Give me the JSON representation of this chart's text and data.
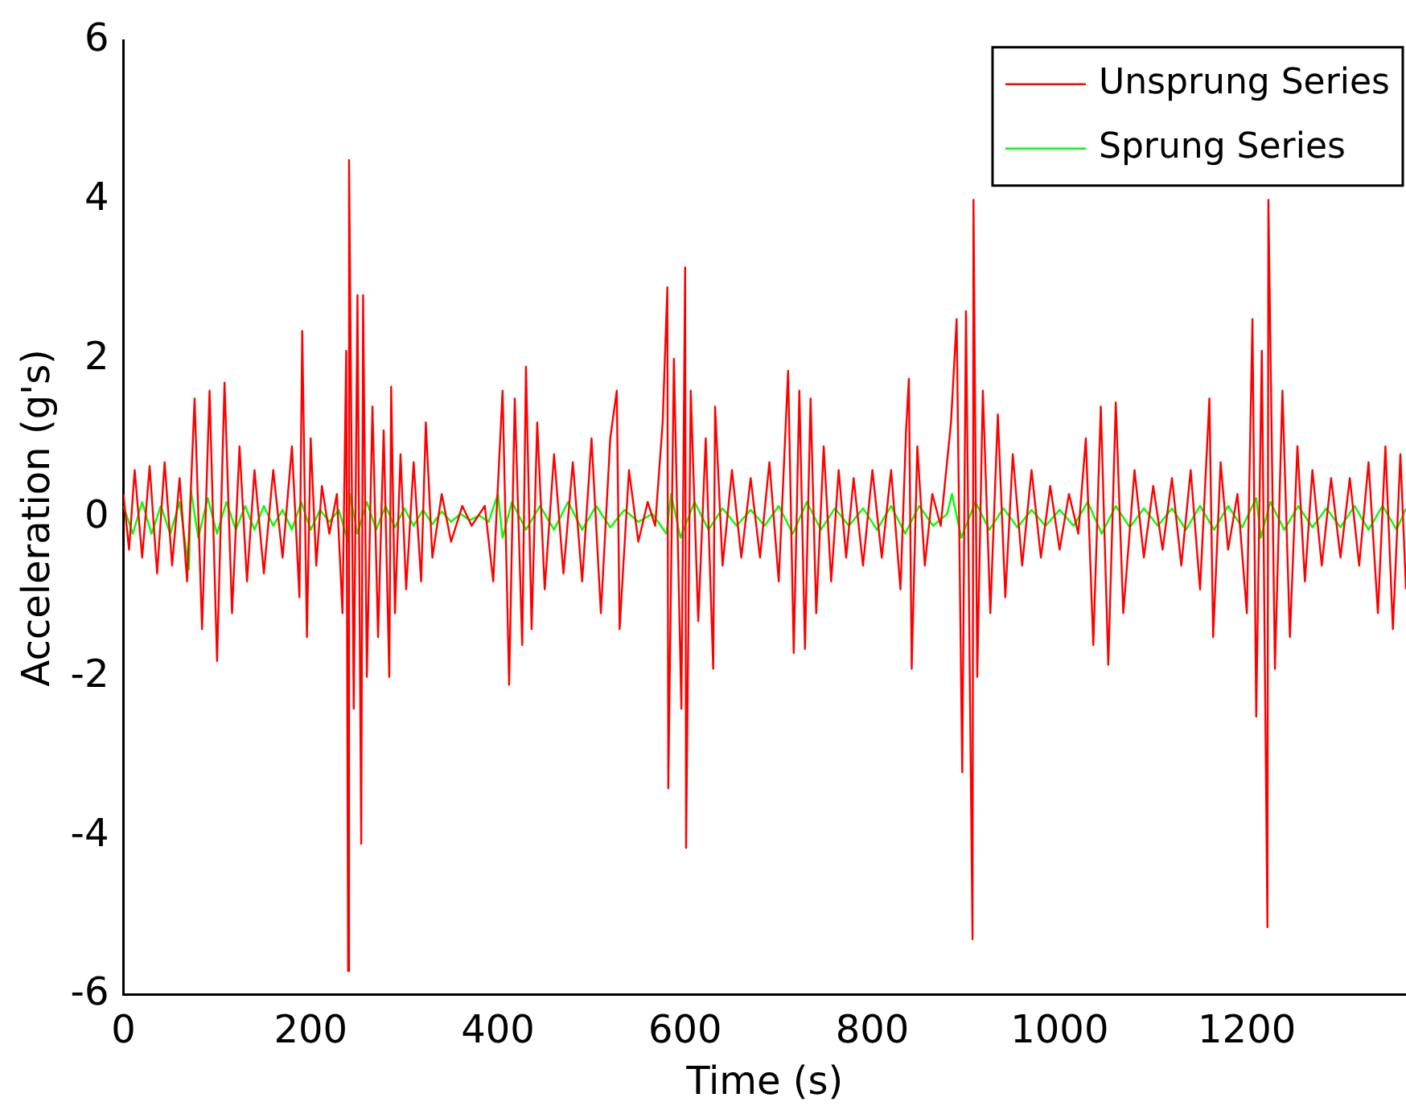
{
  "chart_data": {
    "type": "line",
    "xlabel": "Time (s)",
    "ylabel": "Acceleration (g's)",
    "xlim": [
      0,
      1370
    ],
    "xticks": [
      0,
      200,
      400,
      600,
      800,
      1000,
      1200
    ],
    "ylim": [
      -6,
      6
    ],
    "yticks": [
      -6,
      -4,
      -2,
      0,
      2,
      4,
      6
    ],
    "grid": false,
    "legend": "top right",
    "marker": "none",
    "line_style": "solid",
    "series": [
      {
        "name": "Unsprung Series",
        "color": "#ff0000",
        "x": [
          0,
          6,
          12,
          20,
          28,
          36,
          44,
          52,
          60,
          68,
          76,
          84,
          92,
          100,
          108,
          116,
          124,
          132,
          140,
          150,
          160,
          170,
          180,
          188,
          191,
          196,
          200,
          206,
          212,
          220,
          228,
          234,
          238,
          240,
          241,
          246,
          250,
          254,
          256,
          260,
          266,
          272,
          278,
          284,
          286,
          290,
          296,
          302,
          310,
          318,
          323,
          330,
          340,
          350,
          362,
          372,
          386,
          395,
          405,
          412,
          418,
          426,
          430,
          436,
          442,
          450,
          460,
          470,
          480,
          490,
          500,
          510,
          520,
          527,
          530,
          540,
          550,
          560,
          568,
          576,
          581,
          582,
          588,
          596,
          600,
          601,
          606,
          614,
          622,
          630,
          632,
          640,
          650,
          660,
          670,
          680,
          690,
          700,
          710,
          716,
          722,
          728,
          734,
          740,
          748,
          756,
          764,
          772,
          780,
          790,
          800,
          810,
          820,
          830,
          836,
          839,
          842,
          848,
          856,
          864,
          873,
          884,
          890,
          896,
          900,
          907,
          908,
          912,
          918,
          926,
          934,
          942,
          950,
          960,
          970,
          980,
          990,
          1000,
          1010,
          1020,
          1028,
          1036,
          1044,
          1052,
          1060,
          1068,
          1080,
          1090,
          1100,
          1110,
          1120,
          1130,
          1140,
          1150,
          1160,
          1164,
          1172,
          1180,
          1190,
          1200,
          1206,
          1210,
          1216,
          1222,
          1223,
          1230,
          1238,
          1246,
          1254,
          1262,
          1270,
          1280,
          1290,
          1300,
          1310,
          1320,
          1330,
          1340,
          1348,
          1356,
          1364,
          1370
        ],
        "values": [
          0.3,
          -0.4,
          0.6,
          -0.5,
          0.65,
          -0.7,
          0.7,
          -0.6,
          0.5,
          -0.8,
          1.5,
          -1.4,
          1.6,
          -1.8,
          1.7,
          -1.2,
          0.9,
          -0.8,
          0.6,
          -0.7,
          0.6,
          -0.5,
          0.9,
          -1.0,
          2.35,
          -1.5,
          1.0,
          -0.6,
          0.4,
          -0.2,
          0.3,
          -1.2,
          2.1,
          -5.7,
          4.5,
          -2.4,
          2.8,
          -4.1,
          2.8,
          -2.0,
          1.4,
          -1.5,
          1.1,
          -2.0,
          1.65,
          -1.2,
          0.8,
          -0.9,
          0.7,
          -0.8,
          1.2,
          -0.5,
          0.3,
          -0.3,
          0.15,
          -0.1,
          0.15,
          -0.8,
          1.6,
          -2.1,
          1.5,
          -1.6,
          1.9,
          -1.4,
          1.2,
          -0.9,
          0.8,
          -0.7,
          0.7,
          -0.8,
          1.0,
          -1.2,
          1.0,
          1.6,
          -1.4,
          0.6,
          -0.3,
          0.2,
          -0.1,
          1.2,
          2.9,
          -3.4,
          2.0,
          -2.4,
          3.15,
          -4.15,
          1.6,
          -1.3,
          1.0,
          -1.9,
          1.4,
          -0.6,
          0.6,
          -0.5,
          0.5,
          -0.5,
          0.7,
          -0.8,
          1.85,
          -1.7,
          1.6,
          -1.65,
          1.5,
          -1.2,
          0.9,
          -0.8,
          0.6,
          -0.5,
          0.5,
          -0.6,
          0.6,
          -0.5,
          0.6,
          -0.9,
          1.1,
          1.75,
          -1.9,
          0.9,
          -0.6,
          0.3,
          -0.1,
          1.2,
          2.5,
          -3.2,
          2.6,
          -5.3,
          4.0,
          -2.0,
          1.6,
          -1.2,
          1.3,
          -1.0,
          0.8,
          -0.6,
          0.6,
          -0.5,
          0.4,
          -0.4,
          0.3,
          -0.2,
          1.0,
          -1.6,
          1.4,
          -1.85,
          1.45,
          -1.2,
          0.6,
          -0.5,
          0.4,
          -0.4,
          0.5,
          -0.6,
          0.6,
          -0.9,
          1.5,
          -1.5,
          0.7,
          -0.4,
          0.3,
          -1.2,
          2.5,
          -2.5,
          2.1,
          -5.15,
          4.0,
          -1.9,
          1.6,
          -1.5,
          0.9,
          -0.8,
          0.6,
          -0.6,
          0.5,
          -0.5,
          0.5,
          -0.6,
          0.7,
          -1.2,
          0.9,
          -1.4,
          0.8,
          -0.9
        ]
      },
      {
        "name": "Sprung Series",
        "color": "#00ff00",
        "x": [
          0,
          10,
          20,
          30,
          40,
          50,
          60,
          70,
          72,
          80,
          90,
          100,
          110,
          120,
          130,
          140,
          150,
          160,
          170,
          180,
          190,
          200,
          210,
          220,
          230,
          240,
          242,
          250,
          260,
          270,
          280,
          290,
          300,
          310,
          320,
          330,
          340,
          350,
          360,
          370,
          380,
          390,
          400,
          405,
          415,
          430,
          445,
          460,
          475,
          490,
          505,
          520,
          535,
          550,
          565,
          580,
          585,
          595,
          610,
          625,
          640,
          655,
          670,
          685,
          700,
          715,
          730,
          745,
          760,
          775,
          790,
          805,
          820,
          835,
          850,
          865,
          880,
          885,
          895,
          910,
          925,
          940,
          955,
          970,
          985,
          1000,
          1015,
          1030,
          1045,
          1060,
          1075,
          1090,
          1105,
          1120,
          1135,
          1150,
          1165,
          1180,
          1195,
          1210,
          1215,
          1225,
          1240,
          1255,
          1270,
          1285,
          1300,
          1315,
          1330,
          1345,
          1360,
          1370
        ],
        "values": [
          0.15,
          -0.2,
          0.2,
          -0.2,
          0.15,
          -0.2,
          0.2,
          -0.65,
          0.35,
          -0.25,
          0.25,
          -0.2,
          0.2,
          -0.15,
          0.15,
          -0.15,
          0.15,
          -0.1,
          0.1,
          -0.15,
          0.2,
          -0.15,
          0.1,
          -0.05,
          0.1,
          -0.3,
          0.3,
          -0.2,
          0.2,
          -0.15,
          0.15,
          -0.12,
          0.12,
          -0.1,
          0.1,
          -0.08,
          0.08,
          -0.05,
          0.05,
          -0.03,
          0.03,
          -0.05,
          0.3,
          -0.25,
          0.2,
          -0.15,
          0.15,
          -0.15,
          0.2,
          -0.15,
          0.15,
          -0.12,
          0.1,
          -0.05,
          0.05,
          -0.2,
          0.3,
          -0.25,
          0.2,
          -0.15,
          0.12,
          -0.1,
          0.1,
          -0.1,
          0.15,
          -0.2,
          0.2,
          -0.15,
          0.12,
          -0.1,
          0.12,
          -0.15,
          0.15,
          -0.2,
          0.15,
          -0.1,
          0.05,
          0.3,
          -0.25,
          0.2,
          -0.15,
          0.12,
          -0.12,
          0.1,
          -0.1,
          0.1,
          -0.1,
          0.2,
          -0.2,
          0.15,
          -0.12,
          0.12,
          -0.1,
          0.12,
          -0.15,
          0.15,
          -0.15,
          0.15,
          -0.12,
          0.25,
          -0.25,
          0.2,
          -0.15,
          0.15,
          -0.12,
          0.12,
          -0.12,
          0.15,
          -0.15,
          0.15,
          -0.15,
          0.12
        ]
      }
    ]
  }
}
